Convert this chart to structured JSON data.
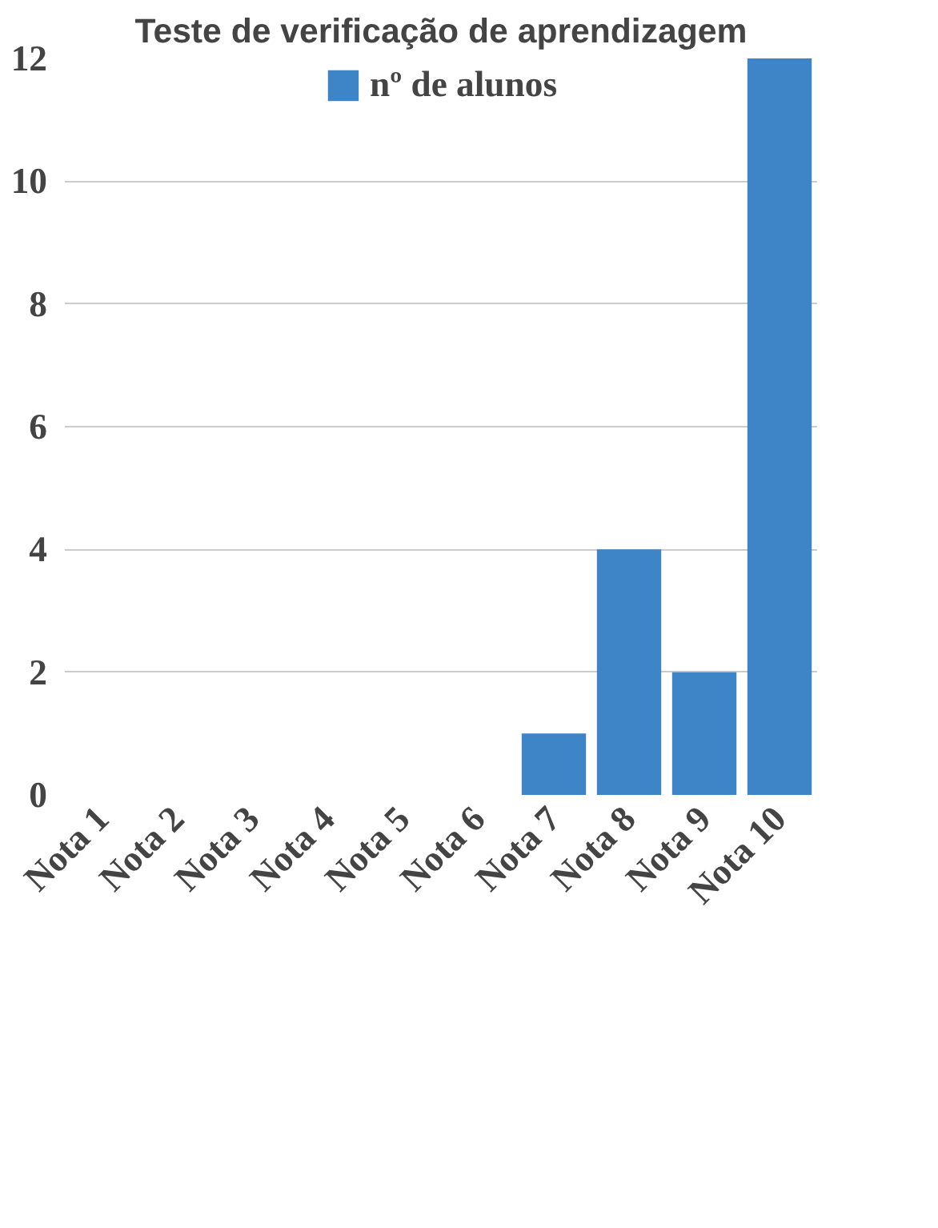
{
  "chart_data": {
    "type": "bar",
    "title": "Teste de verificação de aprendizagem",
    "categories": [
      "Nota 1",
      "Nota 2",
      "Nota 3",
      "Nota 4",
      "Nota 5",
      "Nota 6",
      "Nota 7",
      "Nota 8",
      "Nota 9",
      "Nota 10"
    ],
    "series": [
      {
        "name": "nº de alunos",
        "color": "#3d85c6",
        "values": [
          0,
          0,
          0,
          0,
          0,
          0,
          1,
          4,
          2,
          12
        ]
      }
    ],
    "ylim": [
      0,
      12
    ],
    "yticks": [
      0,
      2,
      4,
      6,
      8,
      10,
      12
    ],
    "grid": "y",
    "legend": "top"
  }
}
